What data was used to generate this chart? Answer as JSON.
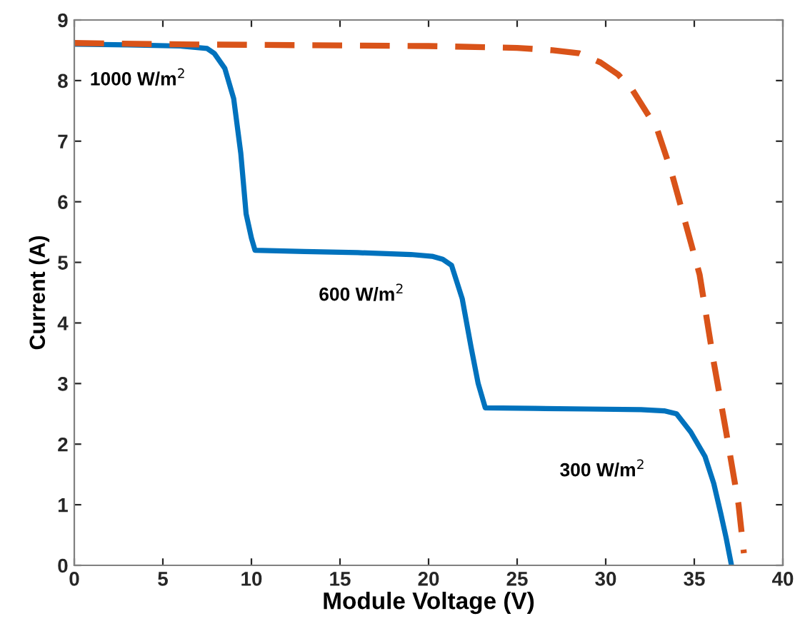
{
  "chart_data": {
    "type": "line",
    "xlabel": "Module Voltage (V)",
    "ylabel": "Current (A)",
    "series": [
      {
        "color": "#0072bd",
        "line_style": "solid",
        "x": [
          0,
          3,
          6,
          7.5,
          7.9,
          8.5,
          9.0,
          9.4,
          9.7,
          10.0,
          10.2,
          13,
          16,
          19,
          20.2,
          20.8,
          21.3,
          21.9,
          22.4,
          22.8,
          23.2,
          26,
          29,
          32,
          33.3,
          34.0,
          34.8,
          35.6,
          36.1,
          36.5,
          36.8,
          37.1
        ],
        "values": [
          8.6,
          8.59,
          8.57,
          8.53,
          8.45,
          8.2,
          7.7,
          6.8,
          5.8,
          5.4,
          5.2,
          5.18,
          5.16,
          5.13,
          5.1,
          5.05,
          4.95,
          4.4,
          3.6,
          3.0,
          2.6,
          2.59,
          2.58,
          2.57,
          2.55,
          2.5,
          2.2,
          1.8,
          1.35,
          0.85,
          0.45,
          0
        ]
      },
      {
        "color": "#d95319",
        "line_style": "dashed",
        "x": [
          0,
          5,
          10,
          15,
          20,
          25,
          27,
          28.5,
          29.7,
          30.7,
          31.5,
          32.9,
          33.7,
          34.5,
          35.3,
          36.1,
          36.8,
          37.5,
          37.8
        ],
        "values": [
          8.62,
          8.6,
          8.59,
          8.58,
          8.57,
          8.54,
          8.5,
          8.45,
          8.3,
          8.1,
          7.85,
          7.2,
          6.5,
          5.65,
          4.8,
          3.35,
          2.2,
          1.0,
          0.2
        ]
      }
    ],
    "xlim": [
      0,
      40
    ],
    "ylim": [
      0,
      9
    ],
    "xticks": [
      0,
      5,
      10,
      15,
      20,
      25,
      30,
      35,
      40
    ],
    "yticks": [
      0,
      1,
      2,
      3,
      4,
      5,
      6,
      7,
      8,
      9
    ],
    "grid": false,
    "legend": false,
    "marker": "none",
    "annotations": [
      "1000 W/m$^{2}$",
      "600 W/m$^{2}$",
      "300 W/m$^{2}$"
    ]
  }
}
